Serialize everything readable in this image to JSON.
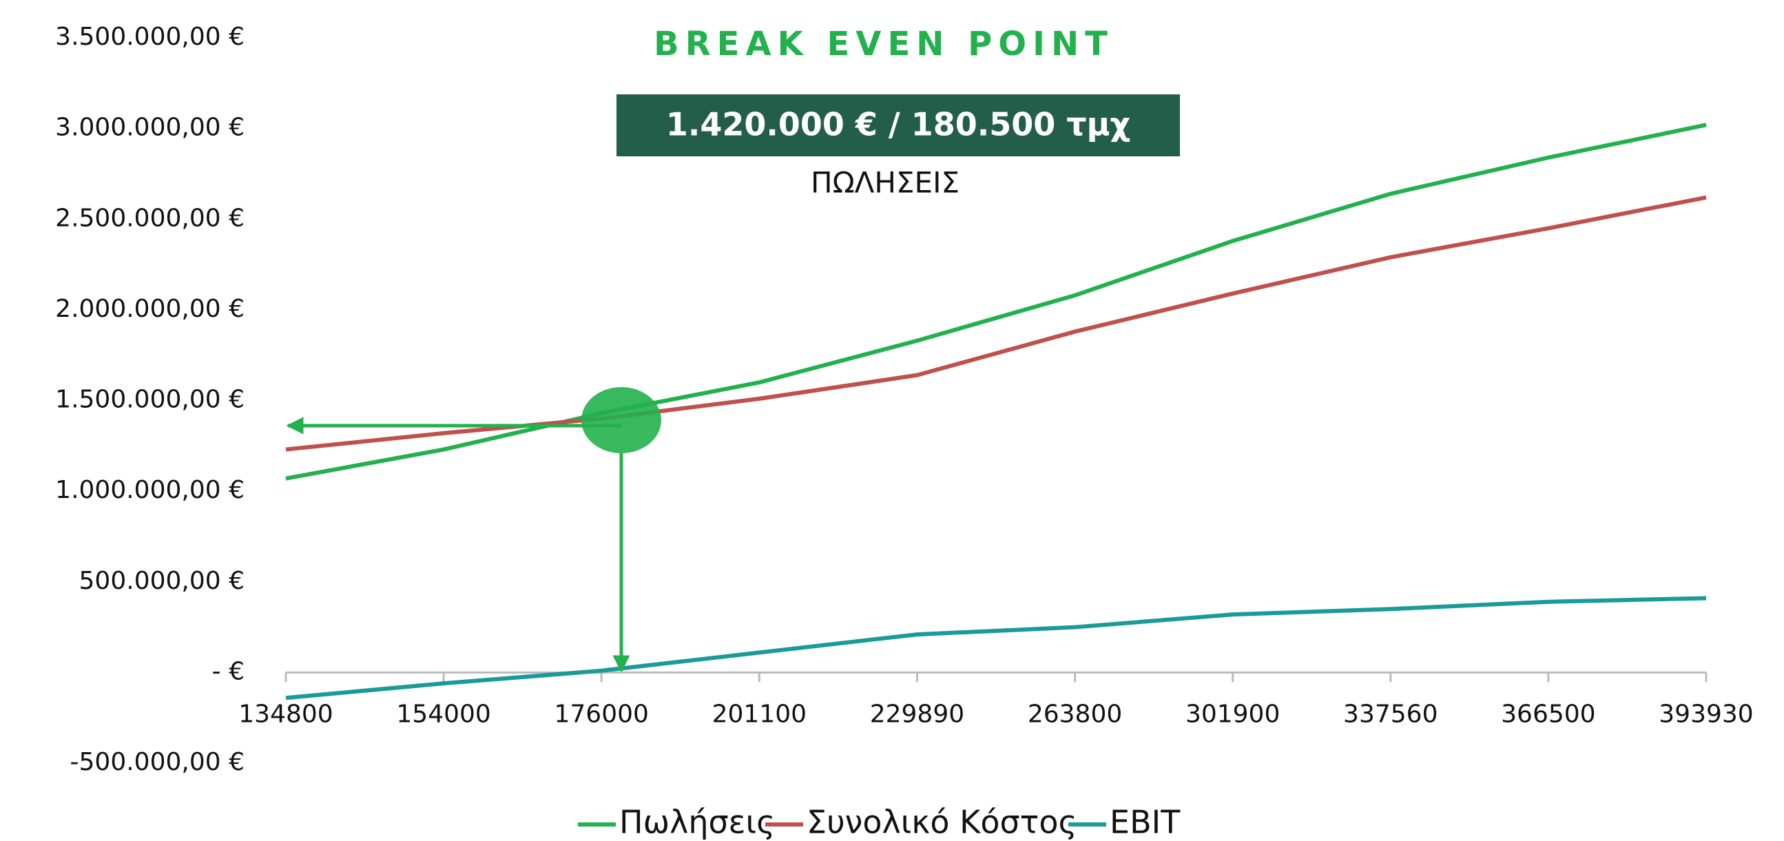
{
  "chart_data": {
    "type": "line",
    "title": "BREAK EVEN POINT",
    "annotations": [
      "1.420.000 € / 180.500 τμχ",
      "ΠΩΛΗΣΕΙΣ"
    ],
    "categories": [
      "134800",
      "154000",
      "176000",
      "201100",
      "229890",
      "263800",
      "301900",
      "337560",
      "366500",
      "393930"
    ],
    "series": [
      {
        "name": "Πωλήσεις",
        "color": "#22b14c",
        "values": [
          1070000,
          1230000,
          1430000,
          1600000,
          1830000,
          2080000,
          2380000,
          2640000,
          2840000,
          3020000
        ]
      },
      {
        "name": "Συνολικό Κόστος",
        "color": "#c0504d",
        "values": [
          1230000,
          1320000,
          1400000,
          1510000,
          1640000,
          1880000,
          2090000,
          2290000,
          2450000,
          2620000
        ]
      },
      {
        "name": "EBIT",
        "color": "#1a9a9a",
        "values": [
          -140000,
          -60000,
          10000,
          110000,
          210000,
          250000,
          320000,
          350000,
          390000,
          410000
        ]
      }
    ],
    "ylim": [
      -500000,
      3500000
    ],
    "yticks": [
      {
        "value": -500000,
        "label": "-500.000,00 €"
      },
      {
        "value": 0,
        "label": "-  €"
      },
      {
        "value": 500000,
        "label": "500.000,00 €"
      },
      {
        "value": 1000000,
        "label": "1.000.000,00 €"
      },
      {
        "value": 1500000,
        "label": "1.500.000,00 €"
      },
      {
        "value": 2000000,
        "label": "2.000.000,00 €"
      },
      {
        "value": 2500000,
        "label": "2.500.000,00 €"
      },
      {
        "value": 3000000,
        "label": "3.000.000,00 €"
      },
      {
        "value": 3500000,
        "label": "3.500.000,00 €"
      }
    ],
    "grid": false
  }
}
